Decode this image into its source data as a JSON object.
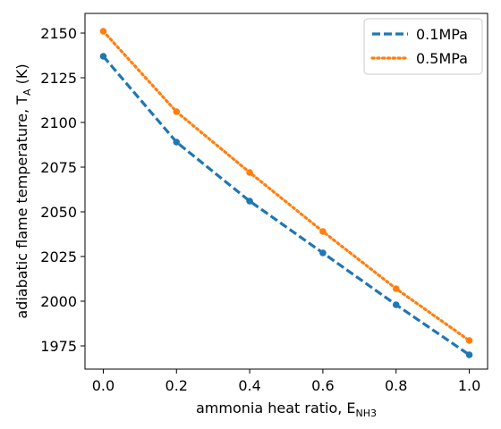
{
  "chart_data": {
    "type": "line",
    "xlabel_main": "ammonia heat ratio, E",
    "xlabel_sub": "NH3",
    "ylabel_main": "adiabatic flame temperature, T",
    "ylabel_sub": "A",
    "ylabel_unit": " (K)",
    "xlim": [
      -0.05,
      1.05
    ],
    "ylim": [
      1962,
      2161
    ],
    "x_ticks": [
      0.0,
      0.2,
      0.4,
      0.6,
      0.8,
      1.0
    ],
    "x_tick_labels": [
      "0.0",
      "0.2",
      "0.4",
      "0.6",
      "0.8",
      "1.0"
    ],
    "y_ticks": [
      1975,
      2000,
      2025,
      2050,
      2075,
      2100,
      2125,
      2150
    ],
    "y_tick_labels": [
      "1975",
      "2000",
      "2025",
      "2050",
      "2075",
      "2100",
      "2125",
      "2150"
    ],
    "x": [
      0.0,
      0.2,
      0.4,
      0.6,
      0.8,
      1.0
    ],
    "series": [
      {
        "name": "0.1MPa",
        "color": "#1f77b4",
        "style": "dashed",
        "values": [
          2137,
          2089,
          2056,
          2027,
          1998,
          1970
        ]
      },
      {
        "name": "0.5MPa",
        "color": "#ff7f0e",
        "style": "dotted",
        "values": [
          2151,
          2106,
          2072,
          2039,
          2007,
          1978
        ]
      }
    ],
    "legend_placement": "top-right",
    "grid": false
  }
}
